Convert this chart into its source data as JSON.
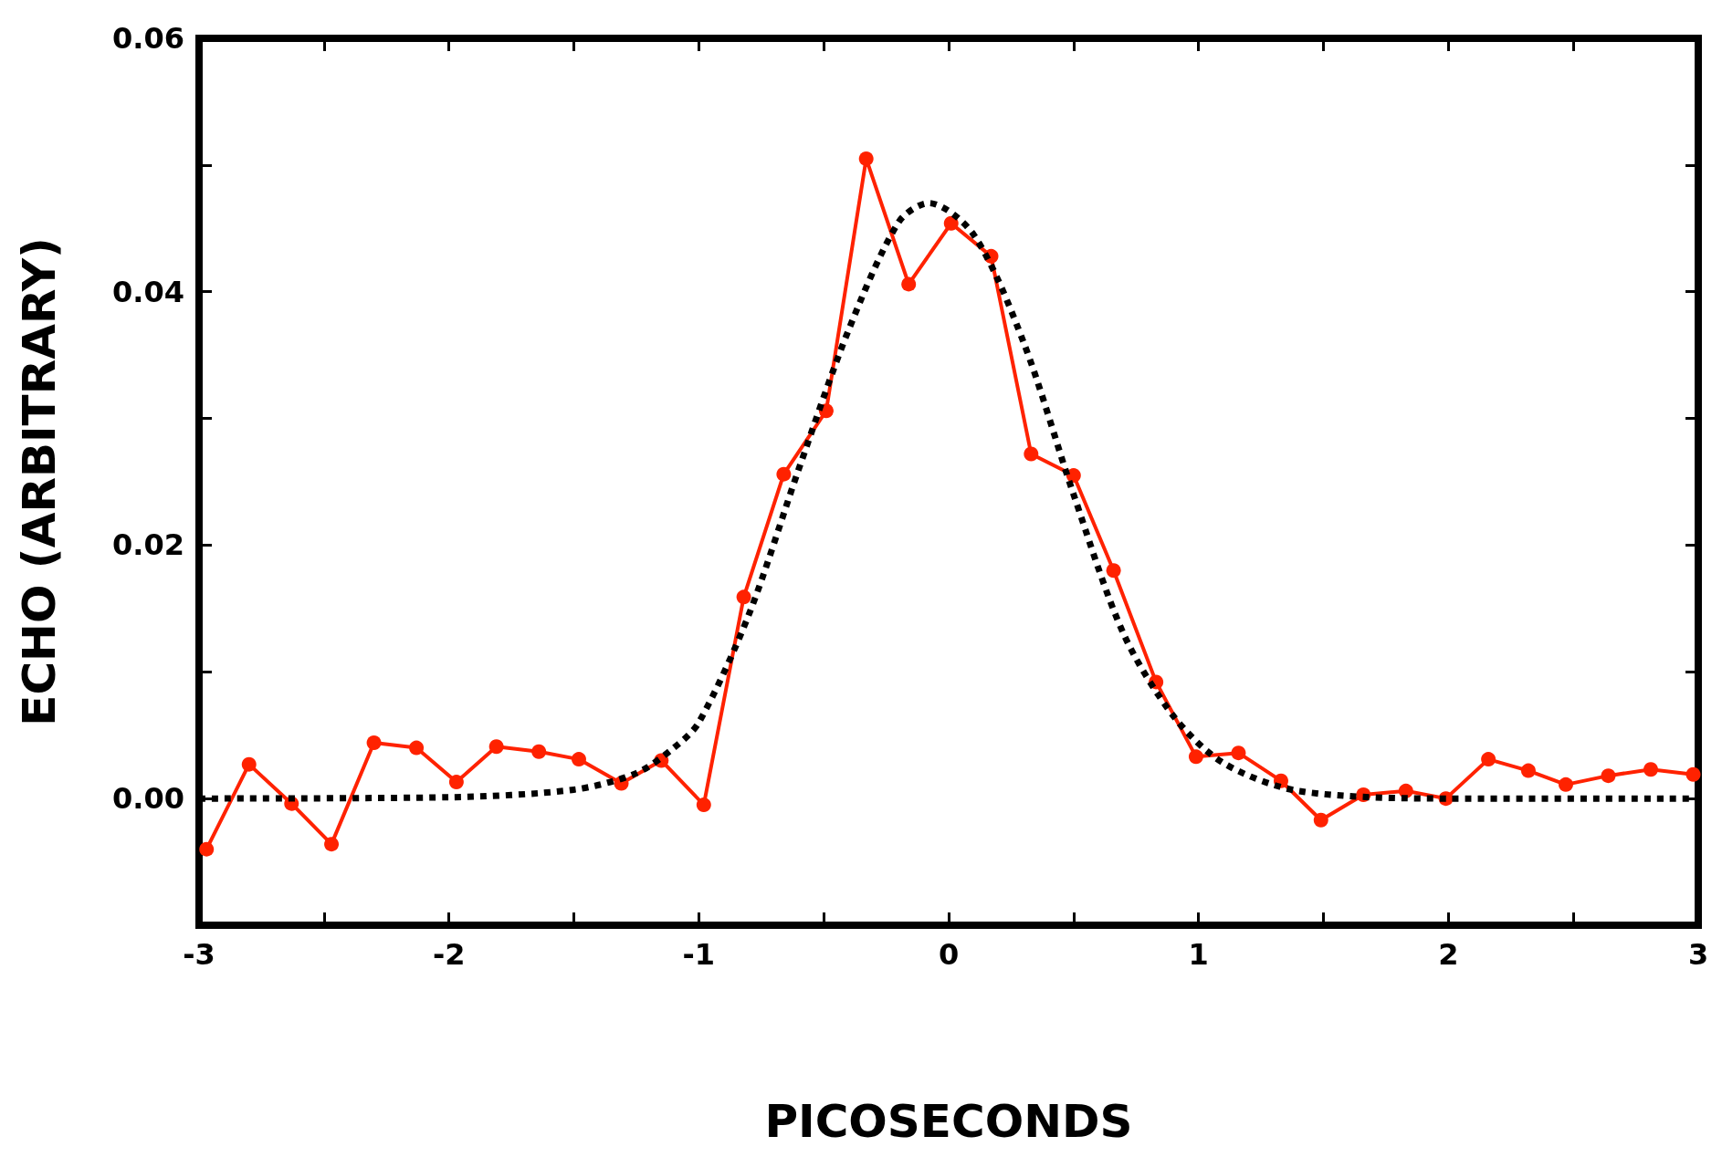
{
  "chart_data": {
    "type": "line",
    "xlabel": "PICOSECONDS",
    "ylabel": "ECHO (ARBITRARY)",
    "xlim": [
      -3,
      3
    ],
    "ylim": [
      -0.01,
      0.06
    ],
    "xticks": [
      -3,
      {
        "value": -2.5,
        "label": null
      },
      -2,
      {
        "value": -1.5,
        "label": null
      },
      -1,
      {
        "value": -0.5,
        "label": null
      },
      0,
      {
        "value": 0.5,
        "label": null
      },
      1,
      {
        "value": 1.5,
        "label": null
      },
      2,
      {
        "value": 2.5,
        "label": null
      },
      3
    ],
    "yticks": [
      {
        "value": -0.01,
        "label": null
      },
      {
        "value": 0,
        "label": "0.00"
      },
      {
        "value": 0.01,
        "label": null
      },
      {
        "value": 0.02,
        "label": "0.02"
      },
      {
        "value": 0.03,
        "label": null
      },
      {
        "value": 0.04,
        "label": "0.04"
      },
      {
        "value": 0.05,
        "label": null
      },
      {
        "value": 0.06,
        "label": "0.06"
      }
    ],
    "grid": false,
    "series": [
      {
        "color": "#ff2200",
        "marker": "circle",
        "line_style": "solid",
        "x": [
          -2.97,
          -2.8,
          -2.63,
          -2.47,
          -2.3,
          -2.13,
          -1.97,
          -1.81,
          -1.64,
          -1.48,
          -1.31,
          -1.15,
          -0.98,
          -0.82,
          -0.66,
          -0.49,
          -0.33,
          -0.16,
          0.01,
          0.17,
          0.33,
          0.5,
          0.66,
          0.83,
          0.99,
          1.16,
          1.33,
          1.49,
          1.66,
          1.83,
          1.99,
          2.16,
          2.32,
          2.47,
          2.64,
          2.81,
          2.98
        ],
        "values": [
          -0.004,
          0.0027,
          -0.0004,
          -0.0036,
          0.0044,
          0.004,
          0.0013,
          0.0041,
          0.0037,
          0.0031,
          0.0012,
          0.003,
          -0.0005,
          0.0159,
          0.0256,
          0.0306,
          0.0505,
          0.0406,
          0.0454,
          0.0428,
          0.0272,
          0.0255,
          0.018,
          0.0092,
          0.0033,
          0.0036,
          0.0014,
          -0.0017,
          0.0003,
          0.0006,
          0,
          0.0031,
          0.0022,
          0.0011,
          0.0018,
          0.0023,
          0.0019
        ]
      },
      {
        "color": "#000000",
        "marker": "none",
        "line_style": "dotted",
        "x": [
          -3,
          -2,
          -1.5,
          -1.25,
          -1.1,
          -1,
          -0.8,
          -0.6,
          -0.4,
          -0.2,
          -0.08,
          0.1,
          0.3,
          0.5,
          0.7,
          0.9,
          1.1,
          1.4,
          2,
          3
        ],
        "values": [
          0,
          0.0001,
          0.0007,
          0.002,
          0.004,
          0.006,
          0.0145,
          0.026,
          0.037,
          0.0455,
          0.047,
          0.0445,
          0.036,
          0.024,
          0.013,
          0.0065,
          0.0028,
          0.0006,
          0,
          0
        ]
      }
    ]
  }
}
